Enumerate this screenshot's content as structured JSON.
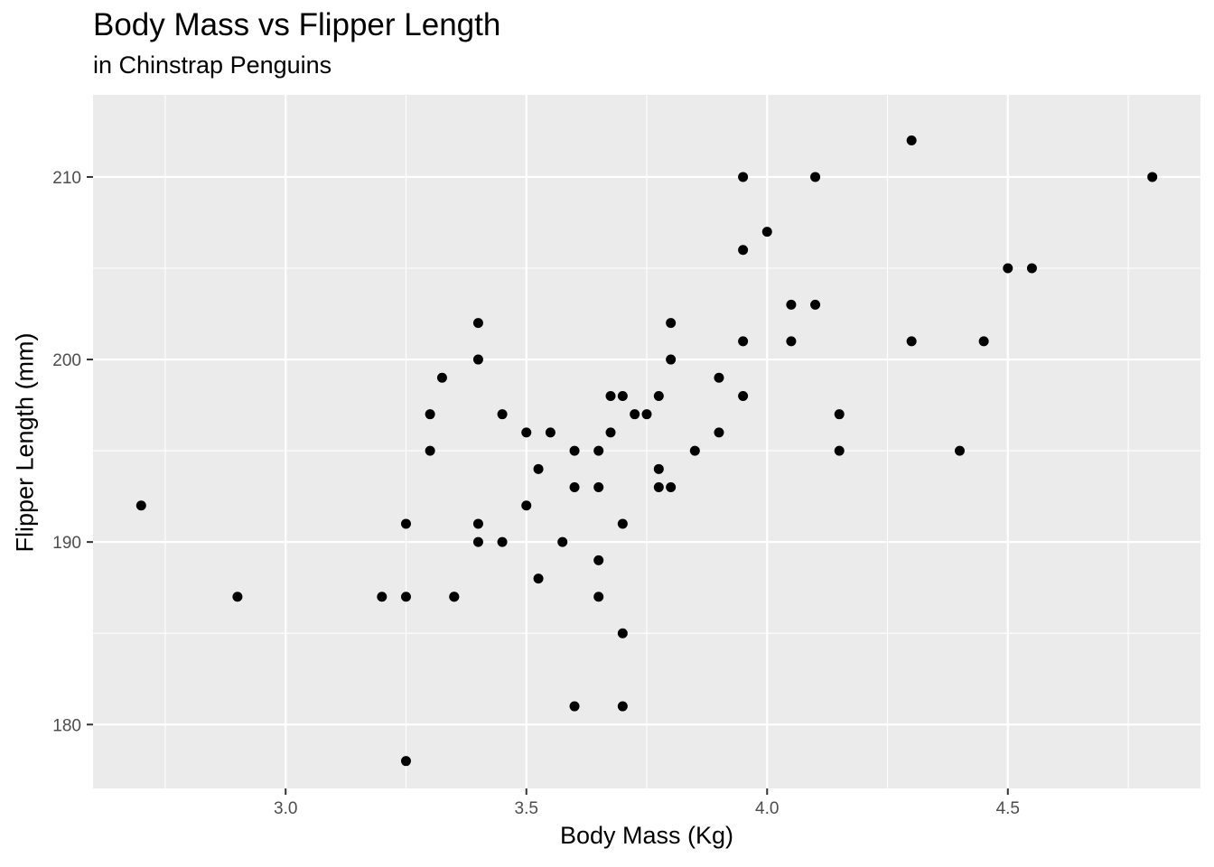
{
  "chart_data": {
    "type": "scatter",
    "title": "Body Mass vs Flipper Length",
    "subtitle": "in Chinstrap Penguins",
    "xlabel": "Body Mass (Kg)",
    "ylabel": "Flipper Length (mm)",
    "xlim": [
      2.6,
      4.9
    ],
    "ylim": [
      176.5,
      214.5
    ],
    "xticks": [
      3.0,
      3.5,
      4.0,
      4.5
    ],
    "xtick_labels": [
      "3.0",
      "3.5",
      "4.0",
      "4.5"
    ],
    "yticks": [
      180,
      190,
      200,
      210
    ],
    "ytick_labels": [
      "180",
      "190",
      "200",
      "210"
    ],
    "grid": true,
    "legend": "none",
    "colors": {
      "panel": "#ebebeb",
      "grid": "#ffffff",
      "point": "#000000",
      "tick": "#4d4d4d"
    },
    "points": [
      {
        "x": 2.7,
        "y": 192
      },
      {
        "x": 2.9,
        "y": 187
      },
      {
        "x": 3.2,
        "y": 187
      },
      {
        "x": 3.25,
        "y": 187
      },
      {
        "x": 3.25,
        "y": 191
      },
      {
        "x": 3.25,
        "y": 178
      },
      {
        "x": 3.3,
        "y": 197
      },
      {
        "x": 3.3,
        "y": 195
      },
      {
        "x": 3.325,
        "y": 199
      },
      {
        "x": 3.35,
        "y": 187
      },
      {
        "x": 3.35,
        "y": 187
      },
      {
        "x": 3.4,
        "y": 202
      },
      {
        "x": 3.4,
        "y": 200
      },
      {
        "x": 3.4,
        "y": 191
      },
      {
        "x": 3.4,
        "y": 190
      },
      {
        "x": 3.45,
        "y": 197
      },
      {
        "x": 3.45,
        "y": 190
      },
      {
        "x": 3.5,
        "y": 196
      },
      {
        "x": 3.5,
        "y": 192
      },
      {
        "x": 3.525,
        "y": 194
      },
      {
        "x": 3.525,
        "y": 188
      },
      {
        "x": 3.55,
        "y": 196
      },
      {
        "x": 3.575,
        "y": 190
      },
      {
        "x": 3.6,
        "y": 195
      },
      {
        "x": 3.6,
        "y": 193
      },
      {
        "x": 3.6,
        "y": 181
      },
      {
        "x": 3.65,
        "y": 195
      },
      {
        "x": 3.65,
        "y": 193
      },
      {
        "x": 3.65,
        "y": 189
      },
      {
        "x": 3.65,
        "y": 187
      },
      {
        "x": 3.675,
        "y": 198
      },
      {
        "x": 3.675,
        "y": 196
      },
      {
        "x": 3.7,
        "y": 198
      },
      {
        "x": 3.7,
        "y": 191
      },
      {
        "x": 3.7,
        "y": 185
      },
      {
        "x": 3.7,
        "y": 181
      },
      {
        "x": 3.725,
        "y": 197
      },
      {
        "x": 3.75,
        "y": 197
      },
      {
        "x": 3.775,
        "y": 198
      },
      {
        "x": 3.775,
        "y": 194
      },
      {
        "x": 3.775,
        "y": 193
      },
      {
        "x": 3.8,
        "y": 202
      },
      {
        "x": 3.8,
        "y": 200
      },
      {
        "x": 3.8,
        "y": 193
      },
      {
        "x": 3.85,
        "y": 195
      },
      {
        "x": 3.9,
        "y": 199
      },
      {
        "x": 3.9,
        "y": 196
      },
      {
        "x": 3.95,
        "y": 210
      },
      {
        "x": 3.95,
        "y": 206
      },
      {
        "x": 3.95,
        "y": 201
      },
      {
        "x": 3.95,
        "y": 198
      },
      {
        "x": 4.0,
        "y": 207
      },
      {
        "x": 4.05,
        "y": 203
      },
      {
        "x": 4.05,
        "y": 201
      },
      {
        "x": 4.1,
        "y": 210
      },
      {
        "x": 4.1,
        "y": 203
      },
      {
        "x": 4.15,
        "y": 197
      },
      {
        "x": 4.15,
        "y": 195
      },
      {
        "x": 4.3,
        "y": 212
      },
      {
        "x": 4.3,
        "y": 201
      },
      {
        "x": 4.4,
        "y": 195
      },
      {
        "x": 4.45,
        "y": 201
      },
      {
        "x": 4.5,
        "y": 205
      },
      {
        "x": 4.55,
        "y": 205
      },
      {
        "x": 4.8,
        "y": 210
      }
    ]
  }
}
